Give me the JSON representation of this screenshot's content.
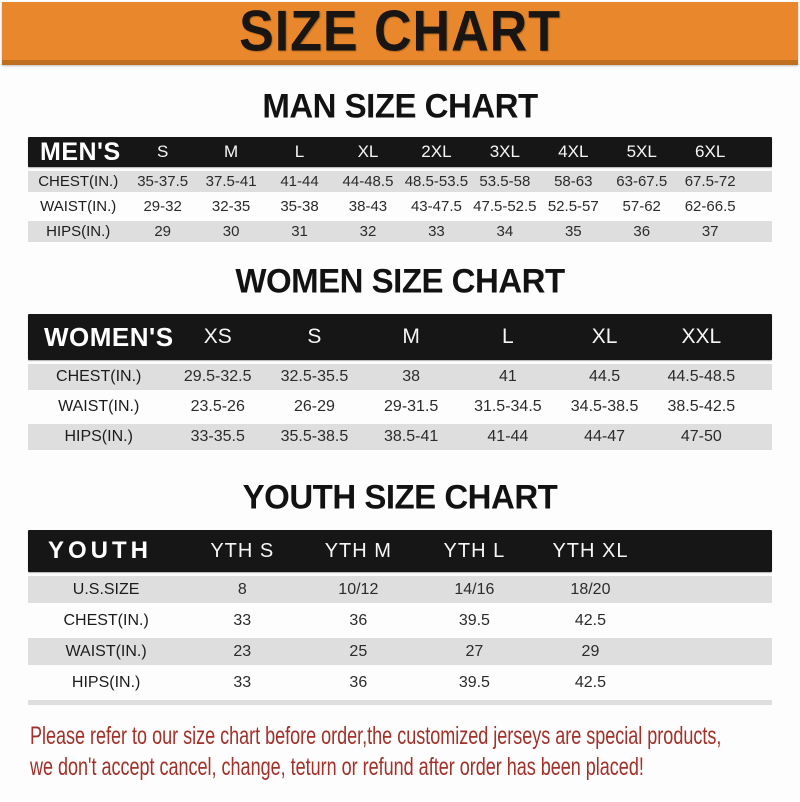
{
  "banner": {
    "title": "SIZE CHART",
    "bg_color": "#e8872b",
    "text_color": "#181512"
  },
  "sections": [
    {
      "heading": "MAN SIZE CHART",
      "table": {
        "corner": "MEN'S",
        "columns": [
          "S",
          "M",
          "L",
          "XL",
          "2XL",
          "3XL",
          "4XL",
          "5XL",
          "6XL"
        ],
        "rows": [
          {
            "label": "CHEST(IN.)",
            "values": [
              "35-37.5",
              "37.5-41",
              "41-44",
              "44-48.5",
              "48.5-53.5",
              "53.5-58",
              "58-63",
              "63-67.5",
              "67.5-72"
            ]
          },
          {
            "label": "WAIST(IN.)",
            "values": [
              "29-32",
              "32-35",
              "35-38",
              "38-43",
              "43-47.5",
              "47.5-52.5",
              "52.5-57",
              "57-62",
              "62-66.5"
            ]
          },
          {
            "label": "HIPS(IN.)",
            "values": [
              "29",
              "30",
              "31",
              "32",
              "33",
              "34",
              "35",
              "36",
              "37"
            ]
          }
        ]
      }
    },
    {
      "heading": "WOMEN SIZE CHART",
      "table": {
        "corner": "WOMEN'S",
        "columns": [
          "XS",
          "S",
          "M",
          "L",
          "XL",
          "XXL"
        ],
        "rows": [
          {
            "label": "CHEST(IN.)",
            "values": [
              "29.5-32.5",
              "32.5-35.5",
              "38",
              "41",
              "44.5",
              "44.5-48.5"
            ]
          },
          {
            "label": "WAIST(IN.)",
            "values": [
              "23.5-26",
              "26-29",
              "29-31.5",
              "31.5-34.5",
              "34.5-38.5",
              "38.5-42.5"
            ]
          },
          {
            "label": "HIPS(IN.)",
            "values": [
              "33-35.5",
              "35.5-38.5",
              "38.5-41",
              "41-44",
              "44-47",
              "47-50"
            ]
          }
        ]
      }
    },
    {
      "heading": "YOUTH SIZE CHART",
      "table": {
        "corner": "YOUTH",
        "columns": [
          "YTH S",
          "YTH M",
          "YTH L",
          "YTH XL"
        ],
        "rows": [
          {
            "label": "U.S.SIZE",
            "values": [
              "8",
              "10/12",
              "14/16",
              "18/20"
            ]
          },
          {
            "label": "CHEST(IN.)",
            "values": [
              "33",
              "36",
              "39.5",
              "42.5"
            ]
          },
          {
            "label": "WAIST(IN.)",
            "values": [
              "23",
              "25",
              "27",
              "29"
            ]
          },
          {
            "label": "HIPS(IN.)",
            "values": [
              "33",
              "36",
              "39.5",
              "42.5"
            ]
          }
        ]
      }
    }
  ],
  "footer": {
    "line1": "Please refer to our size chart before order,the customized jerseys are special products,",
    "line2": "we don't accept cancel, change, teturn or refund after order has been placed!",
    "text_color": "#a23129"
  }
}
